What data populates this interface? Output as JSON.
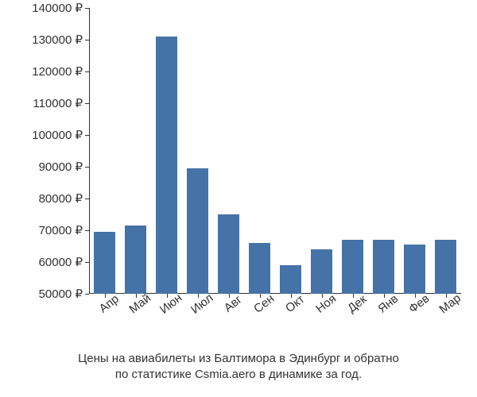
{
  "chart": {
    "type": "bar",
    "ylim": [
      50000,
      140000
    ],
    "ytick_step": 10000,
    "currency_symbol": "₽",
    "background_color": "#ffffff",
    "axis_color": "#323232",
    "text_color": "#323232",
    "bar_color": "#4573a7",
    "bar_width_ratio": 0.68,
    "label_fontsize": 15,
    "x_label_rotation_deg": -38,
    "categories": [
      "Апр",
      "Май",
      "Июн",
      "Июл",
      "Авг",
      "Сен",
      "Окт",
      "Ноя",
      "Дек",
      "Янв",
      "Фев",
      "Мар"
    ],
    "values": [
      69500,
      71500,
      131000,
      89500,
      75000,
      66000,
      59000,
      64000,
      67000,
      67000,
      65500,
      67000
    ],
    "bar_colors": [
      "#4573a7",
      "#4573a7",
      "#4573a7",
      "#4573a7",
      "#4573a7",
      "#4573a7",
      "#4573a7",
      "#4573a7",
      "#4573a7",
      "#4573a7",
      "#4573a7",
      "#4573a7"
    ],
    "yticks": [
      50000,
      60000,
      70000,
      80000,
      90000,
      100000,
      110000,
      120000,
      130000,
      140000
    ],
    "caption_line1": "Цены на авиабилеты из Балтимора в Эдинбург и обратно",
    "caption_line2": "по статистике Csmia.aero в динамике за год."
  }
}
